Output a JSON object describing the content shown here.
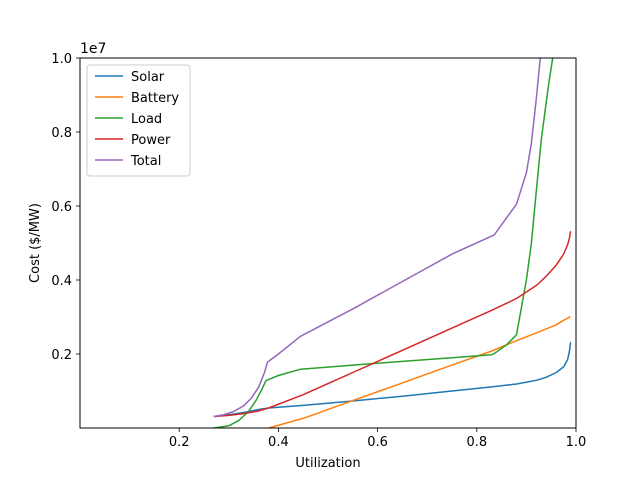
{
  "chart_data": {
    "type": "line",
    "xlabel": "Utilization",
    "ylabel": "Cost ($/MW)",
    "y_offset_label": "1e7",
    "xlim": [
      0.0,
      1.0
    ],
    "ylim": [
      0.0,
      1.0
    ],
    "x_ticks": [
      0.2,
      0.4,
      0.6,
      0.8,
      1.0
    ],
    "x_tick_labels": [
      "0.2",
      "0.4",
      "0.6",
      "0.8",
      "1.0"
    ],
    "y_ticks": [
      0.2,
      0.4,
      0.6,
      0.8,
      1.0
    ],
    "y_tick_labels": [
      "0.2",
      "0.4",
      "0.6",
      "0.8",
      "1.0"
    ],
    "grid": false,
    "legend_position": "upper-left",
    "series": [
      {
        "name": "Solar",
        "color": "#1f77b4",
        "points": [
          [
            0.27,
            0.031
          ],
          [
            0.3,
            0.036
          ],
          [
            0.33,
            0.042
          ],
          [
            0.36,
            0.05
          ],
          [
            0.38,
            0.054
          ],
          [
            0.45,
            0.061
          ],
          [
            0.55,
            0.073
          ],
          [
            0.65,
            0.086
          ],
          [
            0.75,
            0.1
          ],
          [
            0.83,
            0.111
          ],
          [
            0.88,
            0.119
          ],
          [
            0.92,
            0.129
          ],
          [
            0.94,
            0.137
          ],
          [
            0.96,
            0.15
          ],
          [
            0.975,
            0.165
          ],
          [
            0.983,
            0.185
          ],
          [
            0.987,
            0.21
          ],
          [
            0.989,
            0.232
          ]
        ]
      },
      {
        "name": "Battery",
        "color": "#ff7f0e",
        "points": [
          [
            0.38,
            0.0
          ],
          [
            0.45,
            0.026
          ],
          [
            0.55,
            0.074
          ],
          [
            0.65,
            0.122
          ],
          [
            0.75,
            0.17
          ],
          [
            0.83,
            0.208
          ],
          [
            0.88,
            0.236
          ],
          [
            0.92,
            0.257
          ],
          [
            0.96,
            0.279
          ],
          [
            0.975,
            0.291
          ],
          [
            0.989,
            0.301
          ]
        ]
      },
      {
        "name": "Load",
        "color": "#2ca02c",
        "points": [
          [
            0.27,
            0.0
          ],
          [
            0.3,
            0.006
          ],
          [
            0.32,
            0.02
          ],
          [
            0.34,
            0.045
          ],
          [
            0.355,
            0.075
          ],
          [
            0.365,
            0.1
          ],
          [
            0.375,
            0.128
          ],
          [
            0.4,
            0.142
          ],
          [
            0.445,
            0.159
          ],
          [
            0.55,
            0.17
          ],
          [
            0.65,
            0.18
          ],
          [
            0.75,
            0.19
          ],
          [
            0.83,
            0.198
          ],
          [
            0.835,
            0.201
          ],
          [
            0.86,
            0.225
          ],
          [
            0.88,
            0.252
          ],
          [
            0.9,
            0.4
          ],
          [
            0.91,
            0.5
          ],
          [
            0.92,
            0.64
          ],
          [
            0.93,
            0.78
          ],
          [
            0.945,
            0.93
          ],
          [
            0.953,
            1.0
          ]
        ]
      },
      {
        "name": "Power",
        "color": "#d62728",
        "points": [
          [
            0.27,
            0.031
          ],
          [
            0.3,
            0.034
          ],
          [
            0.33,
            0.039
          ],
          [
            0.36,
            0.046
          ],
          [
            0.38,
            0.054
          ],
          [
            0.45,
            0.09
          ],
          [
            0.55,
            0.15
          ],
          [
            0.65,
            0.21
          ],
          [
            0.75,
            0.27
          ],
          [
            0.83,
            0.318
          ],
          [
            0.88,
            0.35
          ],
          [
            0.92,
            0.385
          ],
          [
            0.94,
            0.41
          ],
          [
            0.96,
            0.44
          ],
          [
            0.975,
            0.47
          ],
          [
            0.983,
            0.495
          ],
          [
            0.987,
            0.515
          ],
          [
            0.989,
            0.532
          ]
        ]
      },
      {
        "name": "Total",
        "color": "#9467bd",
        "points": [
          [
            0.27,
            0.031
          ],
          [
            0.29,
            0.036
          ],
          [
            0.31,
            0.045
          ],
          [
            0.33,
            0.06
          ],
          [
            0.345,
            0.08
          ],
          [
            0.36,
            0.11
          ],
          [
            0.372,
            0.15
          ],
          [
            0.378,
            0.178
          ],
          [
            0.4,
            0.2
          ],
          [
            0.445,
            0.248
          ],
          [
            0.55,
            0.322
          ],
          [
            0.65,
            0.396
          ],
          [
            0.75,
            0.47
          ],
          [
            0.835,
            0.522
          ],
          [
            0.88,
            0.605
          ],
          [
            0.9,
            0.69
          ],
          [
            0.91,
            0.77
          ],
          [
            0.92,
            0.89
          ],
          [
            0.925,
            0.96
          ],
          [
            0.928,
            1.0
          ]
        ]
      }
    ]
  }
}
